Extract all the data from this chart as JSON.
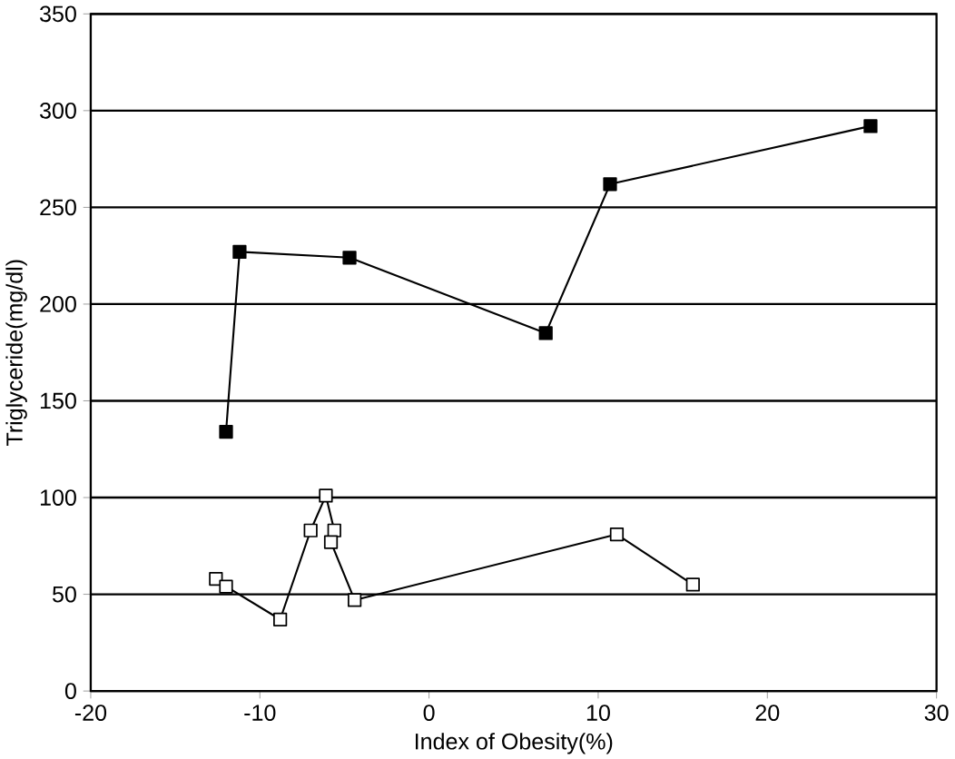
{
  "chart_data": {
    "type": "line",
    "xlabel": "Index of Obesity(%)",
    "ylabel": "Triglyceride(mg/dl)",
    "xlim": [
      -20,
      30
    ],
    "xticks": [
      -20,
      -10,
      0,
      10,
      20,
      30
    ],
    "ylim": [
      0,
      350
    ],
    "yticks": [
      0,
      50,
      100,
      150,
      200,
      250,
      300,
      350
    ],
    "grid": "y",
    "marker": "square",
    "line_style": "solid",
    "series": [
      {
        "color": "#000000",
        "x": [
          -12.0,
          -11.2,
          -4.7,
          6.9,
          10.7,
          26.1
        ],
        "values": [
          134,
          227,
          224,
          185,
          262,
          292
        ]
      },
      {
        "color": "#000000",
        "x": [
          -12.6,
          -12.0,
          -8.8,
          -7.0,
          -6.1,
          -5.6,
          -5.8,
          -4.4,
          11.1,
          15.6
        ],
        "values": [
          58,
          54,
          37,
          83,
          101,
          83,
          77,
          47,
          81,
          55
        ]
      }
    ]
  }
}
